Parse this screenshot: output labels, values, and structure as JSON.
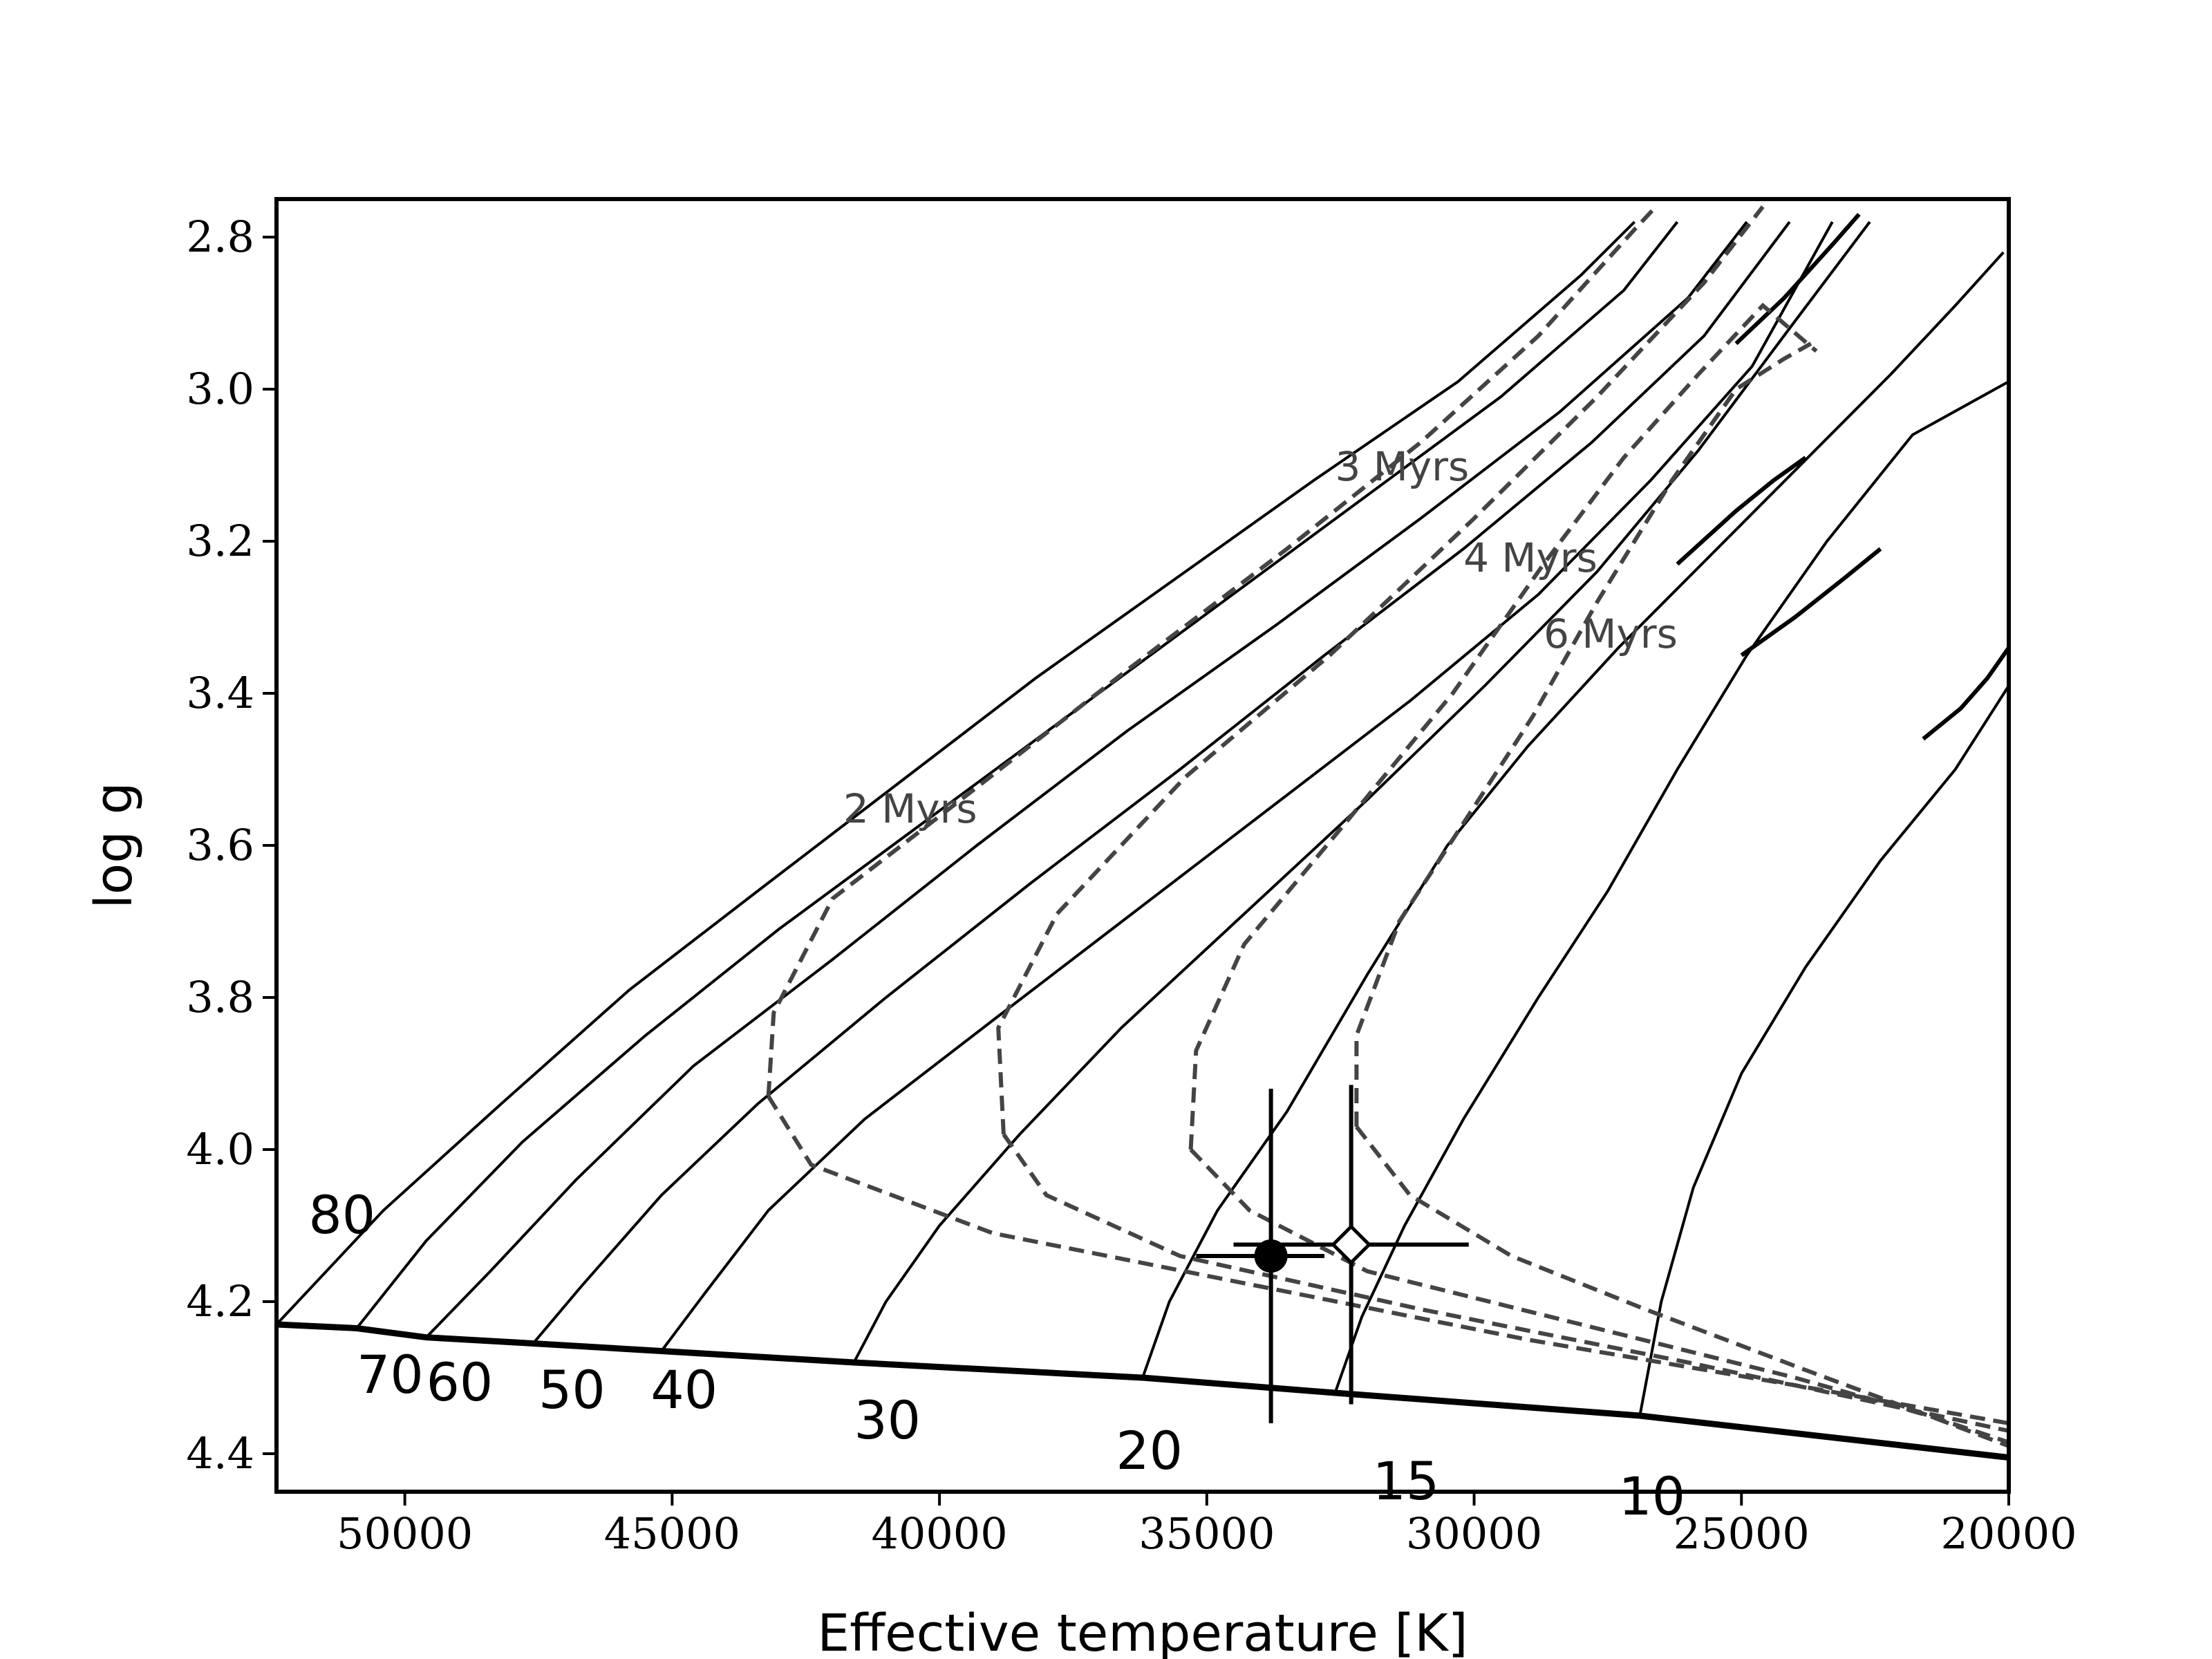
{
  "chart_data": {
    "type": "line",
    "title": "",
    "xlabel": "Effective temperature [K]",
    "ylabel": "log g",
    "xlim": [
      52400,
      20000
    ],
    "ylim": [
      4.45,
      2.75
    ],
    "x_ticks": [
      50000,
      45000,
      40000,
      35000,
      30000,
      25000,
      20000
    ],
    "x_tick_labels": [
      "50000",
      "45000",
      "40000",
      "35000",
      "30000",
      "25000",
      "20000"
    ],
    "y_ticks": [
      2.8,
      3.0,
      3.2,
      3.4,
      3.6,
      3.8,
      4.0,
      4.2,
      4.4
    ],
    "y_tick_labels": [
      "2.8",
      "3.0",
      "3.2",
      "3.4",
      "3.6",
      "3.8",
      "4.0",
      "4.2",
      "4.4"
    ],
    "grid": false,
    "legend": "none",
    "colors": {
      "track": "#000000",
      "isochrone": "#444444",
      "zams": "#000000",
      "marker_fill": "#000000",
      "marker_open": "#ffffff"
    },
    "zams": {
      "name": "ZAMS",
      "points": [
        [
          52400,
          4.23
        ],
        [
          50900,
          4.235
        ],
        [
          49600,
          4.247
        ],
        [
          47600,
          4.255
        ],
        [
          45200,
          4.265
        ],
        [
          41600,
          4.28
        ],
        [
          36200,
          4.3
        ],
        [
          32600,
          4.32
        ],
        [
          26900,
          4.35
        ],
        [
          20000,
          4.405
        ]
      ]
    },
    "tracks": [
      {
        "mass": "80",
        "label": "80",
        "label_pos": [
          51800,
          4.11
        ],
        "points": [
          [
            52400,
            4.23
          ],
          [
            50400,
            4.08
          ],
          [
            48200,
            3.94
          ],
          [
            45800,
            3.79
          ],
          [
            43400,
            3.66
          ],
          [
            40800,
            3.52
          ],
          [
            38200,
            3.38
          ],
          [
            35600,
            3.25
          ],
          [
            33000,
            3.12
          ],
          [
            30300,
            2.99
          ],
          [
            28000,
            2.85
          ],
          [
            27000,
            2.78
          ]
        ]
      },
      {
        "mass": "70",
        "label": "70",
        "label_pos": [
          50900,
          4.32
        ],
        "points": [
          [
            50900,
            4.235
          ],
          [
            49600,
            4.12
          ],
          [
            47800,
            3.99
          ],
          [
            45500,
            3.85
          ],
          [
            43000,
            3.71
          ],
          [
            40300,
            3.57
          ],
          [
            37600,
            3.43
          ],
          [
            34900,
            3.29
          ],
          [
            32200,
            3.15
          ],
          [
            29500,
            3.01
          ],
          [
            27200,
            2.87
          ],
          [
            26200,
            2.78
          ]
        ]
      },
      {
        "mass": "60",
        "label": "60",
        "label_pos": [
          49600,
          4.33
        ],
        "points": [
          [
            49600,
            4.247
          ],
          [
            48400,
            4.16
          ],
          [
            46800,
            4.04
          ],
          [
            44600,
            3.89
          ],
          [
            42000,
            3.75
          ],
          [
            39300,
            3.6
          ],
          [
            36500,
            3.45
          ],
          [
            33700,
            3.31
          ],
          [
            31000,
            3.17
          ],
          [
            28400,
            3.03
          ],
          [
            26000,
            2.88
          ],
          [
            24900,
            2.78
          ]
        ]
      },
      {
        "mass": "50",
        "label": "50",
        "label_pos": [
          47500,
          4.34
        ],
        "points": [
          [
            47600,
            4.255
          ],
          [
            46700,
            4.18
          ],
          [
            45200,
            4.06
          ],
          [
            43400,
            3.94
          ],
          [
            41000,
            3.8
          ],
          [
            38300,
            3.65
          ],
          [
            35500,
            3.5
          ],
          [
            32800,
            3.35
          ],
          [
            30200,
            3.21
          ],
          [
            27800,
            3.07
          ],
          [
            25700,
            2.93
          ],
          [
            24100,
            2.78
          ]
        ]
      },
      {
        "mass": "40",
        "label": "40",
        "label_pos": [
          45400,
          4.34
        ],
        "points": [
          [
            45200,
            4.265
          ],
          [
            44400,
            4.19
          ],
          [
            43200,
            4.08
          ],
          [
            41400,
            3.96
          ],
          [
            39000,
            3.83
          ],
          [
            36400,
            3.69
          ],
          [
            33800,
            3.55
          ],
          [
            31200,
            3.41
          ],
          [
            28800,
            3.27
          ],
          [
            26700,
            3.12
          ],
          [
            24800,
            2.97
          ],
          [
            23300,
            2.78
          ]
        ]
      },
      {
        "mass": "30",
        "label": "30",
        "label_pos": [
          41600,
          4.38
        ],
        "points": [
          [
            41600,
            4.28
          ],
          [
            41000,
            4.2
          ],
          [
            40000,
            4.1
          ],
          [
            38500,
            3.98
          ],
          [
            36600,
            3.84
          ],
          [
            34300,
            3.69
          ],
          [
            32000,
            3.54
          ],
          [
            29800,
            3.39
          ],
          [
            27700,
            3.24
          ],
          [
            25800,
            3.08
          ],
          [
            24100,
            2.92
          ],
          [
            22600,
            2.78
          ]
        ]
      },
      {
        "mass": "20",
        "label": "20",
        "label_pos": [
          36700,
          4.42
        ],
        "points": [
          [
            36200,
            4.3
          ],
          [
            35700,
            4.2
          ],
          [
            34800,
            4.08
          ],
          [
            33500,
            3.95
          ],
          [
            32000,
            3.77
          ],
          [
            30500,
            3.6
          ],
          [
            29000,
            3.47
          ],
          [
            27300,
            3.34
          ],
          [
            25600,
            3.22
          ],
          [
            23900,
            3.1
          ],
          [
            22200,
            2.98
          ],
          [
            21000,
            2.89
          ],
          [
            20100,
            2.82
          ]
        ]
      },
      {
        "mass": "15",
        "label": "15",
        "label_pos": [
          31900,
          4.46
        ],
        "points": [
          [
            32600,
            4.32
          ],
          [
            32100,
            4.22
          ],
          [
            31300,
            4.1
          ],
          [
            30200,
            3.96
          ],
          [
            28800,
            3.8
          ],
          [
            27500,
            3.66
          ],
          [
            26200,
            3.5
          ],
          [
            24900,
            3.35
          ],
          [
            23400,
            3.2
          ],
          [
            21800,
            3.06
          ],
          [
            20000,
            2.99
          ]
        ]
      },
      {
        "mass": "10",
        "label": "10",
        "label_pos": [
          27300,
          4.48
        ],
        "points": [
          [
            26900,
            4.35
          ],
          [
            26500,
            4.2
          ],
          [
            25900,
            4.05
          ],
          [
            25000,
            3.9
          ],
          [
            23800,
            3.76
          ],
          [
            22400,
            3.62
          ],
          [
            21000,
            3.5
          ],
          [
            20000,
            3.39
          ]
        ]
      }
    ],
    "hooks": [
      {
        "name": "hook-20",
        "points": [
          [
            25100,
            2.94
          ],
          [
            24200,
            2.88
          ],
          [
            23300,
            2.81
          ],
          [
            22800,
            2.77
          ]
        ]
      },
      {
        "name": "hook-15",
        "points": [
          [
            26200,
            3.23
          ],
          [
            25100,
            3.16
          ],
          [
            24400,
            3.12
          ],
          [
            23800,
            3.09
          ]
        ]
      },
      {
        "name": "hook-15b",
        "points": [
          [
            25000,
            3.35
          ],
          [
            24000,
            3.3
          ],
          [
            23100,
            3.25
          ],
          [
            22400,
            3.21
          ]
        ]
      },
      {
        "name": "hook-10",
        "points": [
          [
            21600,
            3.46
          ],
          [
            20900,
            3.42
          ],
          [
            20400,
            3.38
          ],
          [
            20000,
            3.34
          ]
        ]
      }
    ],
    "isochrones": [
      {
        "age": "2 Myrs",
        "label": "2 Myrs",
        "label_pos": [
          41800,
          3.57
        ],
        "points": [
          [
            43200,
            3.93
          ],
          [
            43100,
            3.82
          ],
          [
            42000,
            3.67
          ],
          [
            39600,
            3.54
          ],
          [
            36500,
            3.37
          ],
          [
            33500,
            3.21
          ],
          [
            31000,
            3.07
          ],
          [
            28800,
            2.93
          ],
          [
            27000,
            2.79
          ],
          [
            26600,
            2.76
          ]
        ]
      },
      {
        "age": "3 Myrs",
        "label": "3 Myrs",
        "label_pos": [
          32600,
          3.12
        ],
        "points": [
          [
            38800,
            3.98
          ],
          [
            38900,
            3.84
          ],
          [
            37800,
            3.69
          ],
          [
            35400,
            3.51
          ],
          [
            32700,
            3.35
          ],
          [
            30000,
            3.17
          ],
          [
            27700,
            3.01
          ],
          [
            25700,
            2.86
          ],
          [
            24600,
            2.76
          ]
        ]
      },
      {
        "age": "4 Myrs",
        "label": "4 Myrs",
        "label_pos": [
          30200,
          3.24
        ],
        "points": [
          [
            35300,
            4.0
          ],
          [
            35200,
            3.87
          ],
          [
            34300,
            3.73
          ],
          [
            32400,
            3.57
          ],
          [
            30400,
            3.4
          ],
          [
            28700,
            3.23
          ],
          [
            27200,
            3.09
          ],
          [
            25800,
            2.98
          ],
          [
            24600,
            2.89
          ],
          [
            23600,
            2.95
          ]
        ]
      },
      {
        "age": "6 Myrs",
        "label": "6 Myrs",
        "label_pos": [
          28700,
          3.34
        ],
        "points": [
          [
            32200,
            3.97
          ],
          [
            32200,
            3.85
          ],
          [
            31400,
            3.7
          ],
          [
            30100,
            3.56
          ],
          [
            28900,
            3.43
          ],
          [
            27700,
            3.28
          ],
          [
            26300,
            3.12
          ],
          [
            25100,
            3.0
          ],
          [
            24200,
            2.96
          ],
          [
            23700,
            2.94
          ]
        ]
      }
    ],
    "isochrone_tails": [
      {
        "points": [
          [
            43200,
            3.93
          ],
          [
            42400,
            4.02
          ],
          [
            39000,
            4.11
          ],
          [
            34000,
            4.18
          ],
          [
            29000,
            4.25
          ],
          [
            24000,
            4.31
          ],
          [
            20000,
            4.36
          ]
        ]
      },
      {
        "points": [
          [
            38800,
            3.98
          ],
          [
            38000,
            4.06
          ],
          [
            35500,
            4.14
          ],
          [
            31000,
            4.21
          ],
          [
            26000,
            4.28
          ],
          [
            22000,
            4.34
          ],
          [
            20000,
            4.37
          ]
        ]
      },
      {
        "points": [
          [
            35300,
            4.0
          ],
          [
            34200,
            4.08
          ],
          [
            32000,
            4.16
          ],
          [
            28000,
            4.23
          ],
          [
            24000,
            4.3
          ],
          [
            21500,
            4.35
          ],
          [
            20000,
            4.385
          ]
        ]
      },
      {
        "points": [
          [
            32200,
            3.97
          ],
          [
            31200,
            4.06
          ],
          [
            29300,
            4.14
          ],
          [
            26800,
            4.21
          ],
          [
            23800,
            4.29
          ],
          [
            21500,
            4.35
          ],
          [
            20000,
            4.39
          ]
        ]
      }
    ],
    "points": [
      {
        "name": "filled-star",
        "marker": "filled-circle",
        "teff": 33800,
        "logg": 4.14,
        "teff_err_lo": 1400,
        "teff_err_hi": 1000,
        "logg_err": 0.22
      },
      {
        "name": "open-star",
        "marker": "open-diamond",
        "teff": 32300,
        "logg": 4.125,
        "teff_err_lo": 2200,
        "teff_err_hi": 2200,
        "logg_err": 0.21
      }
    ]
  }
}
